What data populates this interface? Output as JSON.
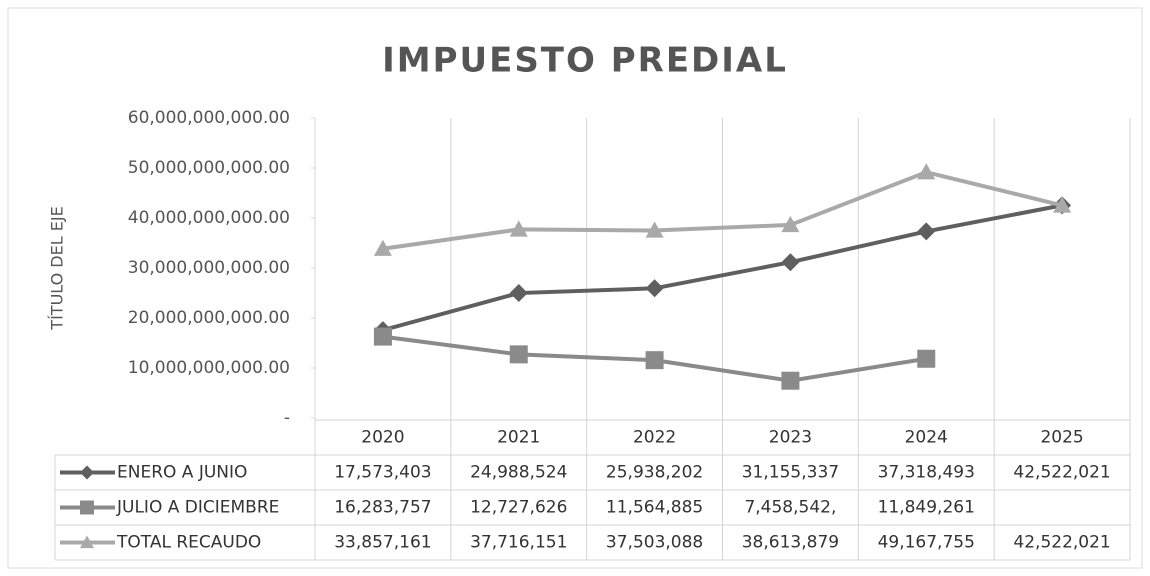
{
  "chart_data": {
    "type": "line",
    "title": "IMPUESTO PREDIAL",
    "y_label": "TÍTULO DEL EJE",
    "categories": [
      "2020",
      "2021",
      "2022",
      "2023",
      "2024",
      "2025"
    ],
    "series": [
      {
        "name": "ENERO A JUNIO",
        "color": "#5f5f5f",
        "marker": "diamond",
        "values": [
          17573403000,
          24988524000,
          25938202000,
          31155337000,
          37318493000,
          42522021000
        ],
        "value_labels": [
          "17,573,403",
          "24,988,524",
          "25,938,202",
          "31,155,337",
          "37,318,493",
          "42,522,021"
        ]
      },
      {
        "name": "JULIO A DICIEMBRE",
        "color": "#8a8a8a",
        "marker": "square",
        "values": [
          16283757000,
          12727626000,
          11564885000,
          7458542000,
          11849261000,
          null
        ],
        "value_labels": [
          "16,283,757",
          "12,727,626",
          "11,564,885",
          "7,458,542,",
          "11,849,261",
          null
        ]
      },
      {
        "name": "TOTAL RECAUDO",
        "color": "#a9a9a9",
        "marker": "triangle",
        "values": [
          33857161000,
          37716151000,
          37503088000,
          38613879000,
          49167755000,
          42522021000
        ],
        "value_labels": [
          "33,857,161",
          "37,716,151",
          "37,503,088",
          "38,613,879",
          "49,167,755",
          "42,522,021"
        ]
      }
    ],
    "ylim": [
      0,
      60000000000
    ],
    "yticks": [
      {
        "value": 0,
        "label": "-"
      },
      {
        "value": 10000000000,
        "label": "10,000,000,000.00"
      },
      {
        "value": 20000000000,
        "label": "20,000,000,000.00"
      },
      {
        "value": 30000000000,
        "label": "30,000,000,000.00"
      },
      {
        "value": 40000000000,
        "label": "40,000,000,000.00"
      },
      {
        "value": 50000000000,
        "label": "50,000,000,000.00"
      },
      {
        "value": 60000000000,
        "label": "60,000,000,000.00"
      }
    ],
    "grid": false
  }
}
